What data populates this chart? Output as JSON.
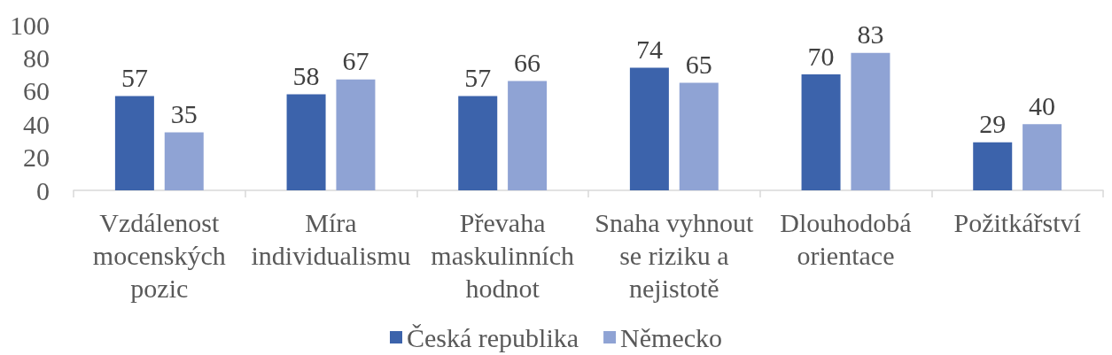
{
  "chart_data": {
    "type": "bar",
    "categories": [
      "Vzdálenost mocenských pozic",
      "Míra individualismu",
      "Převaha maskulinních hodnot",
      "Snaha vyhnout se riziku a nejistotě",
      "Dlouhodobá orientace",
      "Požitkářství"
    ],
    "series": [
      {
        "name": "Česká republika",
        "color": "#3c63ab",
        "values": [
          57,
          58,
          57,
          74,
          70,
          29
        ]
      },
      {
        "name": "Německo",
        "color": "#8fa3d4",
        "values": [
          35,
          67,
          66,
          65,
          83,
          40
        ]
      }
    ],
    "ylim": [
      0,
      100
    ],
    "yticks": [
      0,
      20,
      40,
      60,
      80,
      100
    ],
    "grid": false,
    "legend": "bottom",
    "data_labels": true
  }
}
